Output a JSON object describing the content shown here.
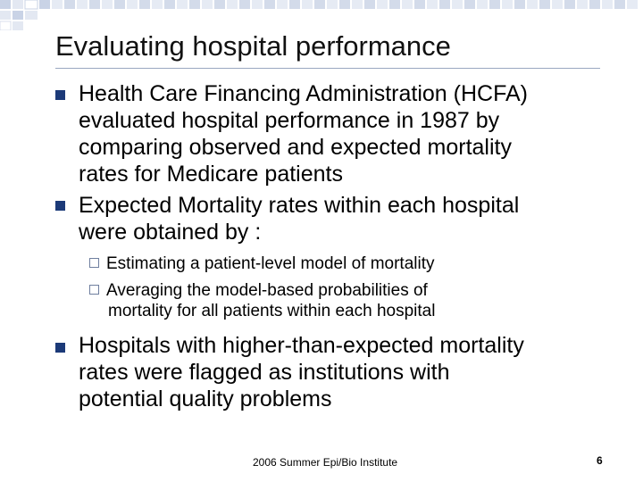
{
  "slide": {
    "title": "Evaluating hospital performance",
    "accent_color": "#1c3a78",
    "decoration": "blue-square-grid",
    "bullets": [
      {
        "icon": "square-bullet-icon",
        "lines": [
          "Health Care Financing Administration (HCFA)",
          "evaluated hospital performance in 1987 by",
          "comparing observed and expected mortality",
          "rates for Medicare patients"
        ]
      },
      {
        "icon": "square-bullet-icon",
        "lines": [
          "Expected Mortality rates within each hospital",
          "were obtained by :"
        ]
      },
      {
        "icon": "square-bullet-icon",
        "lines": [
          "Hospitals with higher-than-expected mortality",
          "rates were flagged as institutions with",
          "potential quality problems"
        ]
      }
    ],
    "sub_bullets": [
      {
        "icon": "checkbox-bullet-icon",
        "lines": [
          "Estimating a patient-level model of mortality"
        ]
      },
      {
        "icon": "checkbox-bullet-icon",
        "lines": [
          "Averaging the model-based probabilities of",
          "mortality for all patients within each hospital"
        ]
      }
    ],
    "footer": "2006 Summer Epi/Bio Institute",
    "page_number": "6"
  }
}
